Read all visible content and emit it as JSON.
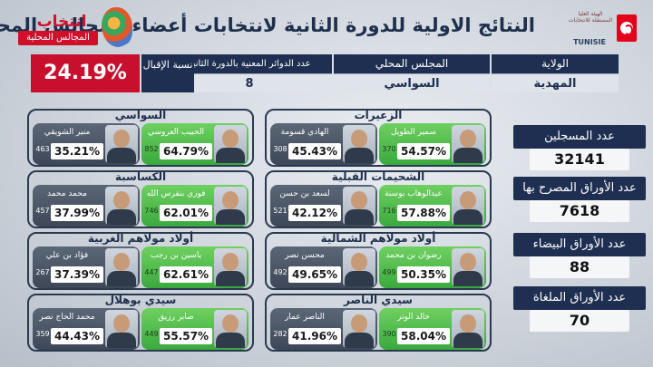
{
  "header": {
    "title": "النتائج الاولية للدورة الثانية لانتخابات أعضاء المجالس المحلية",
    "isie_text": "الهيئة العليا المستقلة للانتخابات",
    "isie_brand": "TUNISIE",
    "logo_word": "انتخاب",
    "logo_sub": "المجالس المحلية"
  },
  "info": {
    "governorate_label": "الولاية",
    "governorate": "المهدية",
    "council_label": "المجلس المحلي",
    "council": "السواسي",
    "districts_label": "عدد الدوائر المعنية بالدورة الثانية",
    "districts": "8",
    "turnout_label": "نسبة الإقبال",
    "turnout": "24.19%"
  },
  "stats": [
    {
      "label": "عدد المسجلين",
      "value": "32141"
    },
    {
      "label": "عدد الأوراق المصرح بها",
      "value": "7618"
    },
    {
      "label": "عدد الأوراق البيضاء",
      "value": "88"
    },
    {
      "label": "عدد الأوراق الملغاة",
      "value": "70"
    }
  ],
  "regions": [
    {
      "name": "الزعيرات",
      "winner": {
        "name": "سمير الطويل",
        "pct": "54.57%",
        "votes": "370"
      },
      "loser": {
        "name": "الهادي قسومة",
        "pct": "45.43%",
        "votes": "308"
      }
    },
    {
      "name": "السواسي",
      "winner": {
        "name": "الحبيب العروسي",
        "pct": "64.79%",
        "votes": "852"
      },
      "loser": {
        "name": "منير الشويقي",
        "pct": "35.21%",
        "votes": "463"
      }
    },
    {
      "name": "الشحيمات القبلية",
      "winner": {
        "name": "عبدالوهاب بوسنة",
        "pct": "57.88%",
        "votes": "716"
      },
      "loser": {
        "name": "لسعد بن حسن",
        "pct": "42.12%",
        "votes": "521"
      }
    },
    {
      "name": "الكساسبة",
      "winner": {
        "name": "فوزي بنفرس الله",
        "pct": "62.01%",
        "votes": "746"
      },
      "loser": {
        "name": "محمد محمد",
        "pct": "37.99%",
        "votes": "457"
      }
    },
    {
      "name": "أولاد مولاهم الشمالية",
      "winner": {
        "name": "رضوان بن محمد",
        "pct": "50.35%",
        "votes": "499"
      },
      "loser": {
        "name": "محسن نصر",
        "pct": "49.65%",
        "votes": "492"
      }
    },
    {
      "name": "أولاد مولاهم الغربية",
      "winner": {
        "name": "ياسين بن رجب",
        "pct": "62.61%",
        "votes": "447"
      },
      "loser": {
        "name": "فؤاد بن علي",
        "pct": "37.39%",
        "votes": "267"
      }
    },
    {
      "name": "سيدي الناصر",
      "winner": {
        "name": "خالد الوتر",
        "pct": "58.04%",
        "votes": "390"
      },
      "loser": {
        "name": "الناصر عمار",
        "pct": "41.96%",
        "votes": "282"
      }
    },
    {
      "name": "سيدي بوهلال",
      "winner": {
        "name": "صابر رزيق",
        "pct": "55.57%",
        "votes": "449"
      },
      "loser": {
        "name": "محمد الحاج نصر",
        "pct": "44.43%",
        "votes": "359"
      }
    }
  ]
}
